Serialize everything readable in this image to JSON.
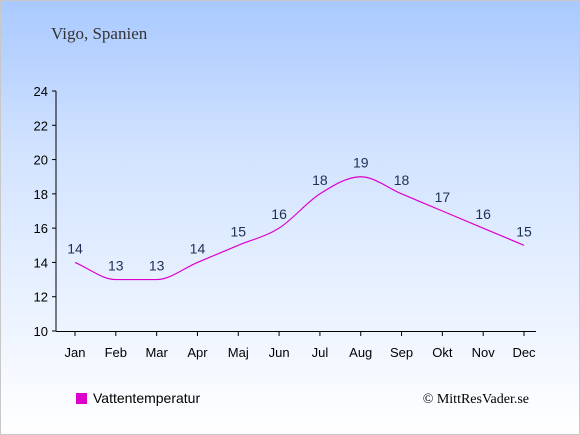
{
  "chart_data": {
    "type": "line",
    "title": "Vigo, Spanien",
    "categories": [
      "Jan",
      "Feb",
      "Mar",
      "Apr",
      "Maj",
      "Jun",
      "Jul",
      "Aug",
      "Sep",
      "Okt",
      "Nov",
      "Dec"
    ],
    "series": [
      {
        "name": "Vattentemperatur",
        "values": [
          14,
          13,
          13,
          14,
          15,
          16,
          18,
          19,
          18,
          17,
          16,
          15
        ],
        "color": "#dd00cc"
      }
    ],
    "ylim": [
      10,
      24
    ],
    "yticks": [
      10,
      12,
      14,
      16,
      18,
      20,
      22,
      24
    ],
    "grid": false,
    "legend_position": "bottom-left"
  },
  "credit": "© MittResVader.se"
}
